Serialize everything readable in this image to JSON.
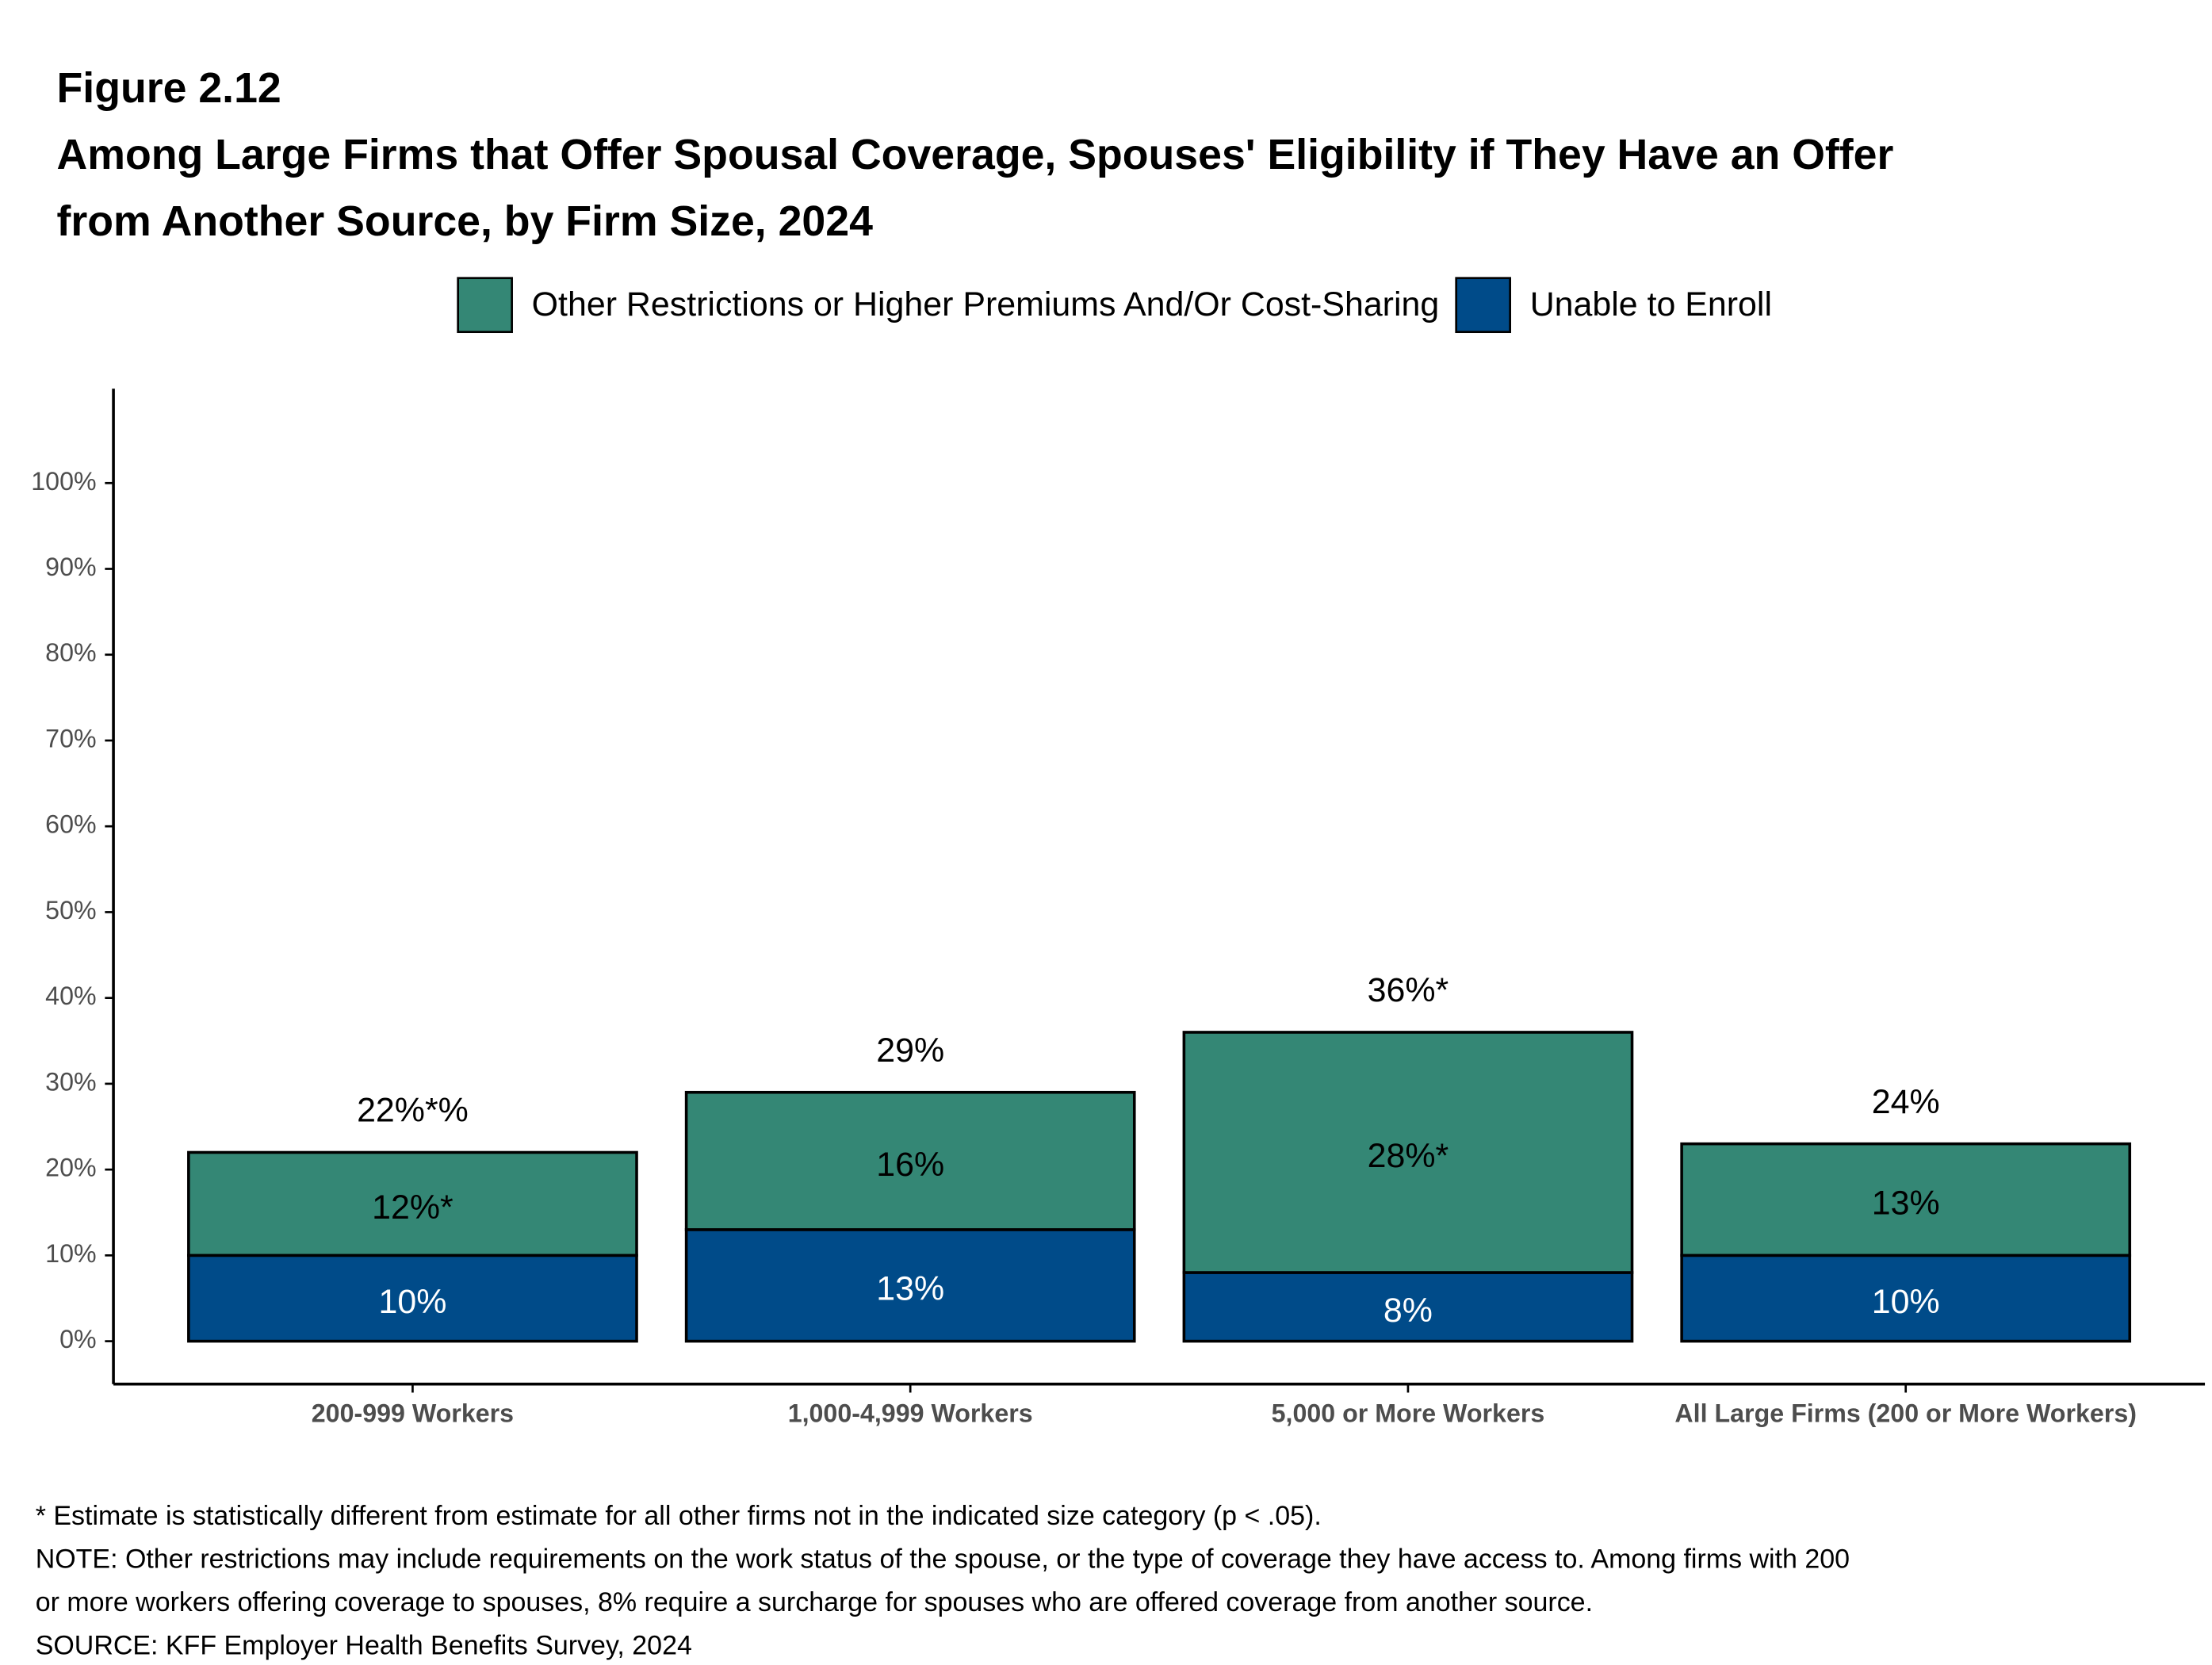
{
  "chart_data": {
    "type": "stacked_bar",
    "figure_label": "Figure 2.12",
    "title": [
      "Among Large Firms that Offer Spousal Coverage, Spouses' Eligibility if They Have an Offer",
      "from Another Source, by Firm Size, 2024"
    ],
    "categories": [
      "200-999 Workers",
      "1,000-4,999 Workers",
      "5,000 or More Workers",
      "All Large Firms (200 or More Workers)"
    ],
    "series": [
      {
        "name": "Other Restrictions or Higher Premiums And/Or Cost-Sharing",
        "color": "#348775",
        "label_color": "#000000",
        "values": [
          12,
          16,
          28,
          13
        ],
        "value_labels": [
          "12%*",
          "16%",
          "28%*",
          "13%"
        ]
      },
      {
        "name": "Unable to Enroll",
        "color": "#004b89",
        "label_color": "#ffffff",
        "values": [
          10,
          13,
          8,
          10
        ],
        "value_labels": [
          "10%",
          "13%",
          "8%",
          "10%"
        ]
      }
    ],
    "totals": {
      "values": [
        22,
        29,
        36,
        24
      ],
      "value_labels": [
        "22%*%",
        "29%",
        "36%*",
        "24%"
      ]
    },
    "ylim": [
      -5,
      111
    ],
    "yticks": [
      {
        "value": 0,
        "label": "0%"
      },
      {
        "value": 10,
        "label": "10%"
      },
      {
        "value": 20,
        "label": "20%"
      },
      {
        "value": 30,
        "label": "30%"
      },
      {
        "value": 40,
        "label": "40%"
      },
      {
        "value": 50,
        "label": "50%"
      },
      {
        "value": 60,
        "label": "60%"
      },
      {
        "value": 70,
        "label": "70%"
      },
      {
        "value": 80,
        "label": "80%"
      },
      {
        "value": 90,
        "label": "90%"
      },
      {
        "value": 100,
        "label": "100%"
      }
    ],
    "grid": false,
    "legend_position": "top",
    "notes": [
      "* Estimate is statistically different from estimate for all other firms not in the indicated size category (p < .05).",
      "NOTE: Other restrictions may include requirements on the work status of the spouse, or the type of coverage they have access to. Among firms with 200",
      "or more workers offering coverage to spouses, 8% require a surcharge for spouses who are offered coverage from another source.",
      "SOURCE: KFF Employer Health Benefits Survey, 2024"
    ]
  }
}
